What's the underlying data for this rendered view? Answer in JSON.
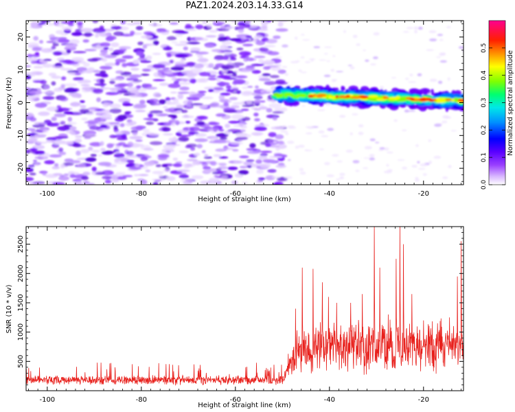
{
  "title": "PAZ1.2024.203.14.33.G14",
  "chart_data": [
    {
      "type": "heatmap",
      "name": "spectrogram",
      "xlabel": "Height of straight line (km)",
      "ylabel": "Frequency (Hz)",
      "xlim": [
        -104.5,
        -11.5
      ],
      "ylim": [
        -25,
        25
      ],
      "xticks": [
        -100,
        -80,
        -60,
        -40,
        -20
      ],
      "yticks": [
        -20,
        -10,
        0,
        10,
        20
      ],
      "colorbar": {
        "label": "Normalized spectral amplitude",
        "range": [
          0.0,
          0.6
        ],
        "ticks": [
          0.0,
          0.1,
          0.2,
          0.3,
          0.4,
          0.5
        ],
        "colors": [
          "#ffffff",
          "#c8a0ff",
          "#7a00ff",
          "#0000ff",
          "#00d8ff",
          "#00ff80",
          "#80ff00",
          "#ffff00",
          "#ff8000",
          "#ff0000",
          "#ff0080"
        ]
      },
      "regions": [
        {
          "x_from": -104.5,
          "x_to": -52,
          "y_from": -25,
          "y_to": 25,
          "amplitude": "0.05-0.12",
          "pattern": "noise"
        },
        {
          "x_from": -52,
          "x_to": -11.5,
          "y_center_start": 2.5,
          "y_center_end": 0.5,
          "half_width": 3,
          "amplitude": "0.2-0.6",
          "pattern": "tone"
        }
      ],
      "grid": false
    },
    {
      "type": "line",
      "name": "snr",
      "xlabel": "Height of straight line (km)",
      "ylabel": "SNR (10 * v/v)",
      "xlim": [
        -104.5,
        -11.5
      ],
      "ylim": [
        0,
        2800
      ],
      "xticks": [
        -100,
        -80,
        -60,
        -40,
        -20
      ],
      "yticks": [
        500,
        1000,
        1500,
        2000,
        2500
      ],
      "series": [
        {
          "color": "#e8201c",
          "segments": [
            {
              "x_from": -104.5,
              "x_to": -50,
              "mean": 180,
              "spread": 90,
              "max": 480
            },
            {
              "x_from": -50,
              "x_to": -11.5,
              "mean": 700,
              "spread": 500,
              "max": 2800
            }
          ],
          "peaks": [
            {
              "x": -47.2,
              "y": 1400
            },
            {
              "x": -45.8,
              "y": 2100
            },
            {
              "x": -43.5,
              "y": 2080
            },
            {
              "x": -41.5,
              "y": 1850
            },
            {
              "x": -40.2,
              "y": 1600
            },
            {
              "x": -38.5,
              "y": 1500
            },
            {
              "x": -35.5,
              "y": 1500
            },
            {
              "x": -33,
              "y": 1650
            },
            {
              "x": -31.5,
              "y": 1050
            },
            {
              "x": -30.5,
              "y": 2800
            },
            {
              "x": -29.3,
              "y": 2100
            },
            {
              "x": -27.5,
              "y": 1300
            },
            {
              "x": -25.8,
              "y": 2250
            },
            {
              "x": -25,
              "y": 2800
            },
            {
              "x": -24.3,
              "y": 2500
            },
            {
              "x": -22.5,
              "y": 1650
            },
            {
              "x": -20,
              "y": 1200
            },
            {
              "x": -17,
              "y": 1150
            },
            {
              "x": -14.5,
              "y": 1250
            },
            {
              "x": -12.8,
              "y": 1950
            },
            {
              "x": -12,
              "y": 2550
            }
          ]
        }
      ],
      "grid": false
    }
  ]
}
